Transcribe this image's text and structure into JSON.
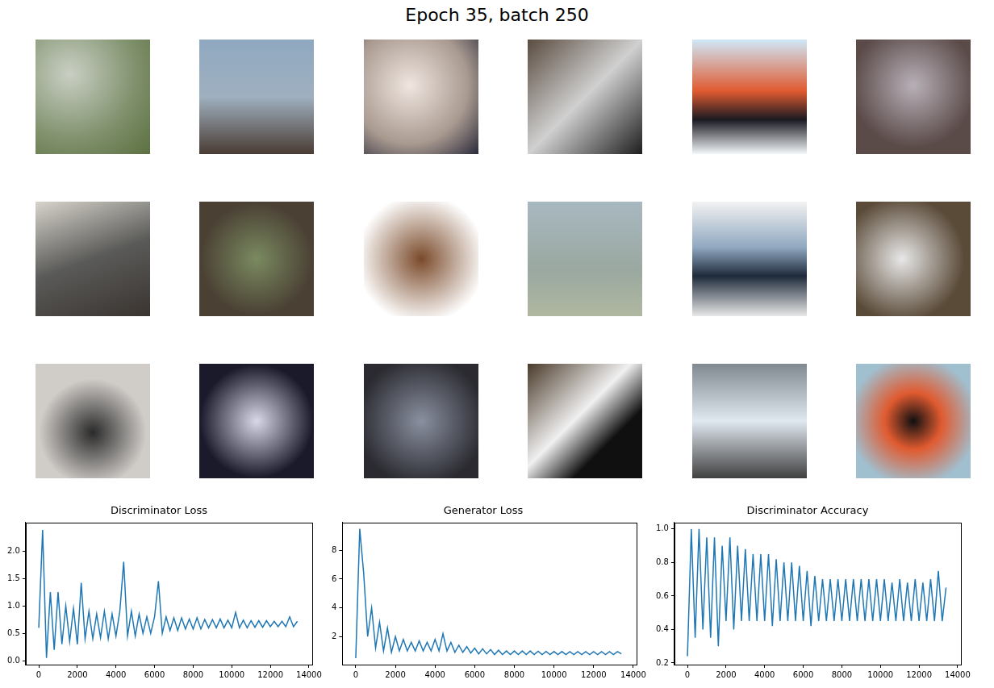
{
  "title": "Epoch 35, batch 250",
  "chart_data": [
    {
      "type": "line",
      "title": "Discriminator Loss",
      "color": "#1f77b4",
      "grid": false,
      "x": [
        0,
        200,
        400,
        600,
        800,
        1000,
        1200,
        1400,
        1600,
        1800,
        2000,
        2200,
        2400,
        2600,
        2800,
        3000,
        3200,
        3400,
        3600,
        3800,
        4000,
        4200,
        4400,
        4600,
        4800,
        5000,
        5200,
        5400,
        5600,
        5800,
        6000,
        6200,
        6400,
        6600,
        6800,
        7000,
        7200,
        7400,
        7600,
        7800,
        8000,
        8200,
        8400,
        8600,
        8800,
        9000,
        9200,
        9400,
        9600,
        9800,
        10000,
        10200,
        10400,
        10600,
        10800,
        11000,
        11200,
        11400,
        11600,
        11800,
        12000,
        12200,
        12400,
        12600,
        12800,
        13000,
        13200,
        13400
      ],
      "values": [
        0.6,
        2.38,
        0.05,
        1.25,
        0.2,
        1.25,
        0.3,
        1.0,
        0.35,
        0.95,
        0.3,
        1.42,
        0.4,
        0.9,
        0.4,
        0.85,
        0.42,
        0.9,
        0.4,
        0.85,
        0.45,
        0.9,
        1.8,
        0.45,
        0.9,
        0.45,
        0.85,
        0.5,
        0.8,
        0.5,
        0.8,
        1.45,
        0.5,
        0.8,
        0.55,
        0.78,
        0.55,
        0.78,
        0.58,
        0.76,
        0.58,
        0.78,
        0.58,
        0.75,
        0.6,
        0.75,
        0.6,
        0.76,
        0.6,
        0.74,
        0.6,
        0.88,
        0.6,
        0.74,
        0.6,
        0.73,
        0.61,
        0.73,
        0.61,
        0.73,
        0.62,
        0.72,
        0.62,
        0.72,
        0.62,
        0.8,
        0.62,
        0.72
      ],
      "xlim": [
        -675,
        14175
      ],
      "xticks": [
        0,
        2000,
        4000,
        6000,
        8000,
        10000,
        12000,
        14000
      ],
      "ylim": [
        -0.07,
        2.52
      ],
      "yticks": [
        {
          "value": 0,
          "label": "0.0"
        },
        {
          "value": 0.5,
          "label": "0.5"
        },
        {
          "value": 1,
          "label": "1.0"
        },
        {
          "value": 1.5,
          "label": "1.5"
        },
        {
          "value": 2,
          "label": "2.0"
        }
      ]
    },
    {
      "type": "line",
      "title": "Generator Loss",
      "color": "#1f77b4",
      "grid": false,
      "x": [
        0,
        200,
        400,
        600,
        800,
        1000,
        1200,
        1400,
        1600,
        1800,
        2000,
        2200,
        2400,
        2600,
        2800,
        3000,
        3200,
        3400,
        3600,
        3800,
        4000,
        4200,
        4400,
        4600,
        4800,
        5000,
        5200,
        5400,
        5600,
        5800,
        6000,
        6200,
        6400,
        6600,
        6800,
        7000,
        7200,
        7400,
        7600,
        7800,
        8000,
        8200,
        8400,
        8600,
        8800,
        9000,
        9200,
        9400,
        9600,
        9800,
        10000,
        10200,
        10400,
        10600,
        10800,
        11000,
        11200,
        11400,
        11600,
        11800,
        12000,
        12200,
        12400,
        12600,
        12800,
        13000,
        13200,
        13400
      ],
      "values": [
        0.5,
        9.5,
        6.4,
        2.0,
        4.0,
        1.2,
        3.0,
        1.0,
        2.6,
        0.9,
        2.0,
        1.0,
        1.8,
        1.0,
        1.6,
        1.0,
        1.7,
        1.0,
        1.6,
        1.0,
        1.8,
        1.0,
        2.2,
        1.0,
        1.6,
        0.9,
        1.4,
        0.9,
        1.3,
        0.85,
        1.2,
        0.8,
        1.15,
        0.8,
        1.1,
        0.75,
        1.05,
        0.75,
        1.0,
        0.75,
        1.0,
        0.75,
        1.0,
        0.75,
        1.0,
        0.75,
        0.98,
        0.75,
        0.97,
        0.75,
        0.96,
        0.75,
        0.96,
        0.75,
        0.95,
        0.75,
        0.95,
        0.75,
        0.95,
        0.75,
        0.95,
        0.75,
        0.95,
        0.75,
        0.95,
        0.75,
        0.95,
        0.8
      ],
      "xlim": [
        -675,
        14175
      ],
      "xticks": [
        0,
        2000,
        4000,
        6000,
        8000,
        10000,
        12000,
        14000
      ],
      "ylim": [
        0.05,
        9.95
      ],
      "yticks": [
        2,
        4,
        6,
        8
      ]
    },
    {
      "type": "line",
      "title": "Discriminator Accuracy",
      "color": "#1f77b4",
      "grid": false,
      "x": [
        0,
        200,
        400,
        600,
        800,
        1000,
        1200,
        1400,
        1600,
        1800,
        2000,
        2200,
        2400,
        2600,
        2800,
        3000,
        3200,
        3400,
        3600,
        3800,
        4000,
        4200,
        4400,
        4600,
        4800,
        5000,
        5200,
        5400,
        5600,
        5800,
        6000,
        6200,
        6400,
        6600,
        6800,
        7000,
        7200,
        7400,
        7600,
        7800,
        8000,
        8200,
        8400,
        8600,
        8800,
        9000,
        9200,
        9400,
        9600,
        9800,
        10000,
        10200,
        10400,
        10600,
        10800,
        11000,
        11200,
        11400,
        11600,
        11800,
        12000,
        12200,
        12400,
        12600,
        12800,
        13000,
        13200,
        13400
      ],
      "values": [
        0.24,
        1.0,
        0.35,
        1.0,
        0.4,
        0.95,
        0.35,
        0.95,
        0.3,
        0.9,
        0.45,
        0.95,
        0.4,
        0.9,
        0.45,
        0.88,
        0.45,
        0.85,
        0.45,
        0.85,
        0.45,
        0.85,
        0.42,
        0.82,
        0.45,
        0.8,
        0.45,
        0.8,
        0.45,
        0.78,
        0.45,
        0.75,
        0.42,
        0.72,
        0.45,
        0.7,
        0.45,
        0.7,
        0.45,
        0.7,
        0.45,
        0.7,
        0.45,
        0.7,
        0.45,
        0.7,
        0.45,
        0.7,
        0.45,
        0.7,
        0.45,
        0.7,
        0.45,
        0.68,
        0.45,
        0.7,
        0.45,
        0.68,
        0.45,
        0.7,
        0.45,
        0.68,
        0.45,
        0.7,
        0.45,
        0.75,
        0.45,
        0.65
      ],
      "xlim": [
        -675,
        14175
      ],
      "xticks": [
        0,
        2000,
        4000,
        6000,
        8000,
        10000,
        12000,
        14000
      ],
      "ylim": [
        0.19,
        1.04
      ],
      "yticks": [
        {
          "value": 0.2,
          "label": "0.2"
        },
        {
          "value": 0.4,
          "label": "0.4"
        },
        {
          "value": 0.6,
          "label": "0.6"
        },
        {
          "value": 0.8,
          "label": "0.8"
        },
        {
          "value": 1,
          "label": "1.0"
        }
      ]
    }
  ]
}
